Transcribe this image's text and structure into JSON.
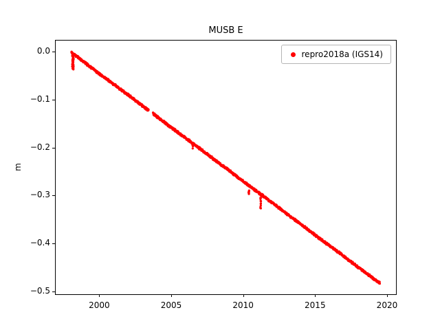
{
  "chart_data": {
    "type": "scatter",
    "title": "MUSB E",
    "xlabel": "",
    "ylabel": "m",
    "xlim": [
      1996.925,
      2020.575
    ],
    "ylim": [
      -0.504,
      0.024
    ],
    "grid": false,
    "xticks": [
      2000,
      2005,
      2010,
      2015,
      2020
    ],
    "xtick_labels": [
      "2000",
      "2005",
      "2010",
      "2015",
      "2020"
    ],
    "yticks": [
      0.0,
      -0.1,
      -0.2,
      -0.3,
      -0.4,
      -0.5
    ],
    "ytick_labels": [
      "0.0",
      "−0.1",
      "−0.2",
      "−0.3",
      "−0.4",
      "−0.5"
    ],
    "legend": {
      "label": "repro2018a (IGS14)",
      "location": "upper right",
      "marker": "dot",
      "marker_color": "#ff0000"
    },
    "series": [
      {
        "name": "repro2018a (IGS14)",
        "color": "#ff0000",
        "marker": "point",
        "trend": [
          [
            1998.0,
            0.0
          ],
          [
            1999.0,
            -0.023
          ],
          [
            2000.0,
            -0.046
          ],
          [
            2001.0,
            -0.068
          ],
          [
            2002.0,
            -0.09
          ],
          [
            2003.0,
            -0.113
          ],
          [
            2004.0,
            -0.135
          ],
          [
            2005.0,
            -0.158
          ],
          [
            2006.0,
            -0.18
          ],
          [
            2007.0,
            -0.202
          ],
          [
            2008.0,
            -0.225
          ],
          [
            2009.0,
            -0.247
          ],
          [
            2010.0,
            -0.27
          ],
          [
            2011.0,
            -0.292
          ],
          [
            2012.0,
            -0.314
          ],
          [
            2013.0,
            -0.337
          ],
          [
            2014.0,
            -0.359
          ],
          [
            2015.0,
            -0.382
          ],
          [
            2016.0,
            -0.404
          ],
          [
            2017.0,
            -0.426
          ],
          [
            2018.0,
            -0.449
          ],
          [
            2019.0,
            -0.471
          ],
          [
            2019.45,
            -0.481
          ]
        ]
      }
    ],
    "sampling": {
      "start": 1998.02,
      "end": 2019.45,
      "step": 0.01,
      "noise": 0.0028
    },
    "gaps": [
      [
        2003.38,
        2003.68
      ]
    ],
    "anomalies": [
      {
        "x": 1998.12,
        "width": 0.1,
        "dy": -0.033,
        "n": 55
      },
      {
        "x": 2006.45,
        "width": 0.04,
        "dy": -0.012,
        "n": 8
      },
      {
        "x": 2010.35,
        "width": 0.04,
        "dy": -0.02,
        "n": 12
      },
      {
        "x": 2011.17,
        "width": 0.04,
        "dy": -0.03,
        "n": 14
      }
    ]
  }
}
